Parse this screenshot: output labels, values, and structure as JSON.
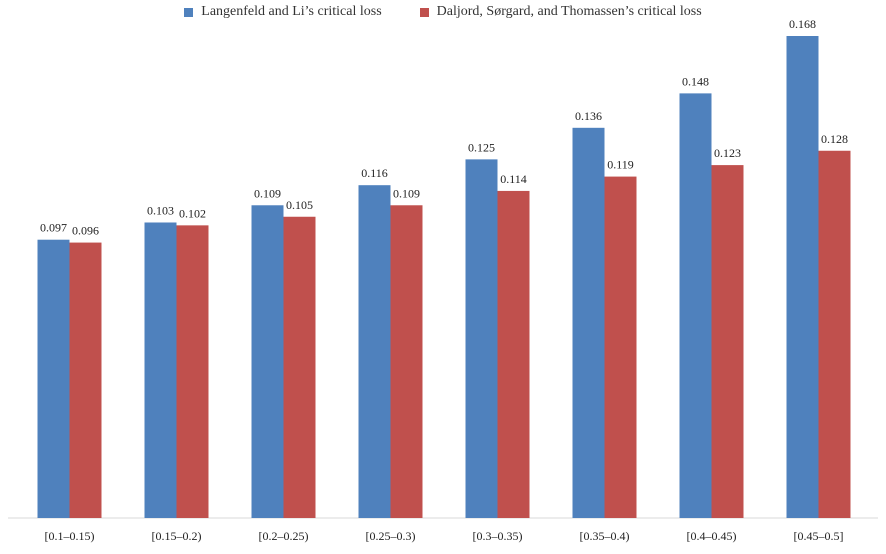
{
  "chart_data": {
    "type": "bar",
    "title": "",
    "xlabel": "",
    "ylabel": "",
    "ylim": [
      0,
      0.17
    ],
    "grid": false,
    "legend_position": "top-center",
    "categories": [
      "[0.1–0.15)",
      "[0.15–0.2)",
      "[0.2–0.25)",
      "[0.25–0.3)",
      "[0.3–0.35)",
      "[0.35–0.4)",
      "[0.4–0.45)",
      "[0.45–0.5]"
    ],
    "series": [
      {
        "name": "Langenfeld and Li’s critical loss",
        "color": "#4f81bd",
        "values": [
          0.097,
          0.103,
          0.109,
          0.116,
          0.125,
          0.136,
          0.148,
          0.168
        ],
        "labels": [
          "0.097",
          "0.103",
          "0.109",
          "0.116",
          "0.125",
          "0.136",
          "0.148",
          "0.168"
        ]
      },
      {
        "name": "Daljord, Sørgard, and Thomassen’s critical loss",
        "color": "#c0504d",
        "values": [
          0.096,
          0.102,
          0.105,
          0.109,
          0.114,
          0.119,
          0.123,
          0.128
        ],
        "labels": [
          "0.096",
          "0.102",
          "0.105",
          "0.109",
          "0.114",
          "0.119",
          "0.123",
          "0.128"
        ]
      }
    ]
  }
}
